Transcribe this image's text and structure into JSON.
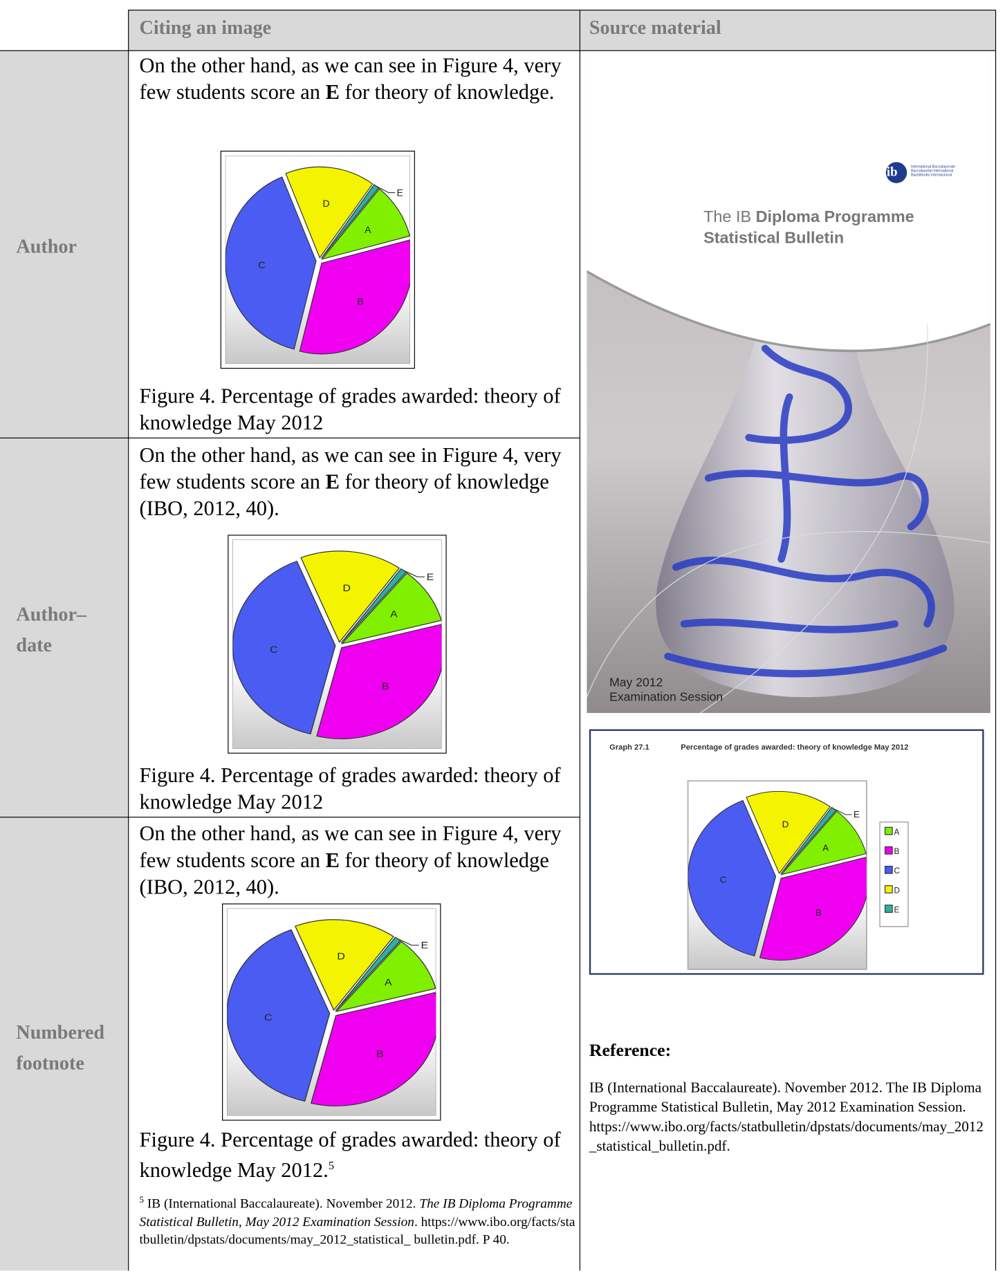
{
  "header": {
    "col1": "Citing an image",
    "col2": "Source material"
  },
  "rows": [
    {
      "label": [
        "Author"
      ],
      "text": {
        "before": "On the other hand, as we can see in Figure 4, very few students score an ",
        "bold": "E",
        "after": " for theory of knowledge."
      },
      "caption": "Figure 4. Percentage of grades awarded: theory of knowledge May 2012"
    },
    {
      "label": [
        "Author–",
        "date"
      ],
      "text": {
        "before": "On the other hand, as we can see in Figure 4, very few students score an ",
        "bold": "E",
        "after": " for theory of knowledge (IBO, 2012, 40)."
      },
      "caption": "Figure 4. Percentage of grades awarded: theory of knowledge May 2012"
    },
    {
      "label": [
        "Numbered",
        "footnote"
      ],
      "text": {
        "before": "On the other hand, as we can see in Figure 4, very few students score an ",
        "bold": "E",
        "after": " for theory of knowledge (IBO, 2012, 40)."
      },
      "caption": "Figure 4. Percentage of grades awarded: theory of knowledge May 2012.",
      "caption_note": "5",
      "footnote": {
        "number": "5",
        "before": "IB (International Baccalaureate). November 2012. ",
        "title": "The IB Diploma Programme Statistical Bulletin, May 2012 Examination Session",
        "after": ". https://www.ibo.org/facts/statbulletin/dpstats/documents/may_2012_statistical_ bulletin.pdf. P 40."
      }
    }
  ],
  "chart_data": {
    "type": "pie",
    "categories": [
      "A",
      "B",
      "C",
      "D",
      "E"
    ],
    "values": [
      10,
      33,
      40,
      16,
      1
    ],
    "colors": [
      "#80f000",
      "#f000f0",
      "#4a5cf2",
      "#f4f400",
      "#30b0a0"
    ]
  },
  "cover": {
    "logo": [
      "International Baccalaureate",
      "Baccalauréat International",
      "Bachillerato Internacional"
    ],
    "title_plain": "The IB ",
    "title_bold": "Diploma Programme",
    "subtitle": "Statistical Bulletin",
    "session": [
      "May 2012",
      "Examination Session"
    ]
  },
  "source_graph": {
    "number": "Graph 27.1",
    "title": "Percentage of grades awarded: theory of knowledge May 2012"
  },
  "reference": {
    "heading": "Reference:",
    "text": "IB (International Baccalaureate). November 2012. The IB Diploma Programme Statistical Bulletin, May 2012 Examination Session. https://www.ibo.org/facts/statbulletin/dpstats/documents/may_2012_statistical_bulletin.pdf."
  }
}
